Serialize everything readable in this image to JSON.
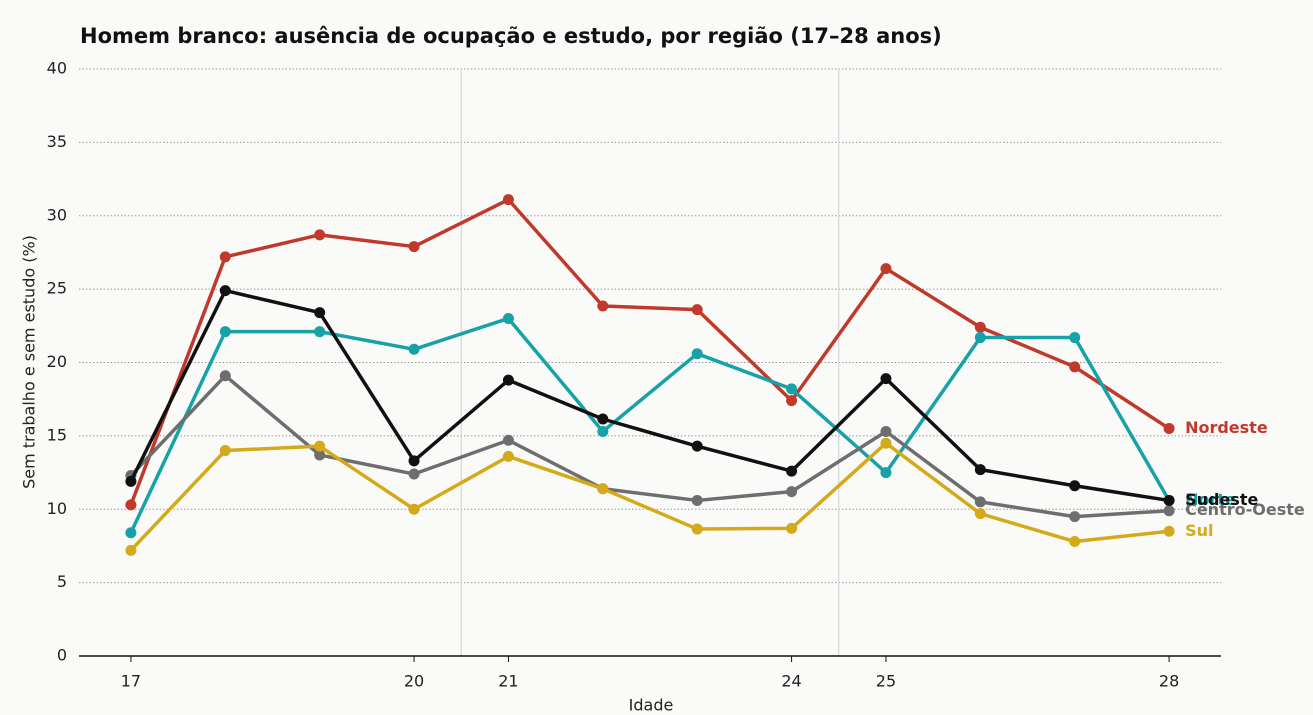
{
  "chart_data": {
    "type": "line",
    "title": "Homem branco: ausência de ocupação e estudo, por região (17–28 anos)",
    "xlabel": "Idade",
    "ylabel": "Sem trabalho e sem estudo (%)",
    "x": [
      17,
      18,
      19,
      20,
      21,
      22,
      23,
      24,
      25,
      26,
      27,
      28
    ],
    "series": [
      {
        "name": "Nordeste",
        "color": "#c0392b",
        "values": [
          10.3,
          27.2,
          28.7,
          27.9,
          31.1,
          23.85,
          23.6,
          17.4,
          26.4,
          22.4,
          19.7,
          15.5
        ]
      },
      {
        "name": "Norte",
        "color": "#17a2a8",
        "values": [
          8.4,
          22.1,
          22.1,
          20.9,
          23.0,
          15.3,
          20.6,
          18.2,
          12.5,
          21.7,
          21.7,
          10.6
        ]
      },
      {
        "name": "Centro-Oeste",
        "color": "#6e6e6e",
        "values": [
          12.3,
          19.1,
          13.7,
          12.4,
          14.7,
          11.4,
          10.6,
          11.2,
          15.3,
          10.5,
          9.5,
          9.9
        ]
      },
      {
        "name": "Sul",
        "color": "#d4a91a",
        "values": [
          7.2,
          14.0,
          14.3,
          10.0,
          13.6,
          11.4,
          8.65,
          8.7,
          14.5,
          9.7,
          7.8,
          8.5
        ]
      },
      {
        "name": "Sudeste",
        "color": "#111111",
        "values": [
          11.9,
          24.9,
          23.4,
          13.3,
          18.8,
          16.15,
          14.3,
          12.6,
          18.9,
          12.7,
          11.6,
          10.6
        ]
      }
    ],
    "xlim": [
      16.45,
      28.55
    ],
    "xticks": [
      17,
      20,
      21,
      24,
      25,
      28
    ],
    "ylim": [
      0,
      40
    ],
    "yticks": [
      0,
      5,
      10,
      15,
      20,
      25,
      30,
      35,
      40
    ],
    "vlines": [
      20.5,
      24.5
    ],
    "grid": true
  }
}
